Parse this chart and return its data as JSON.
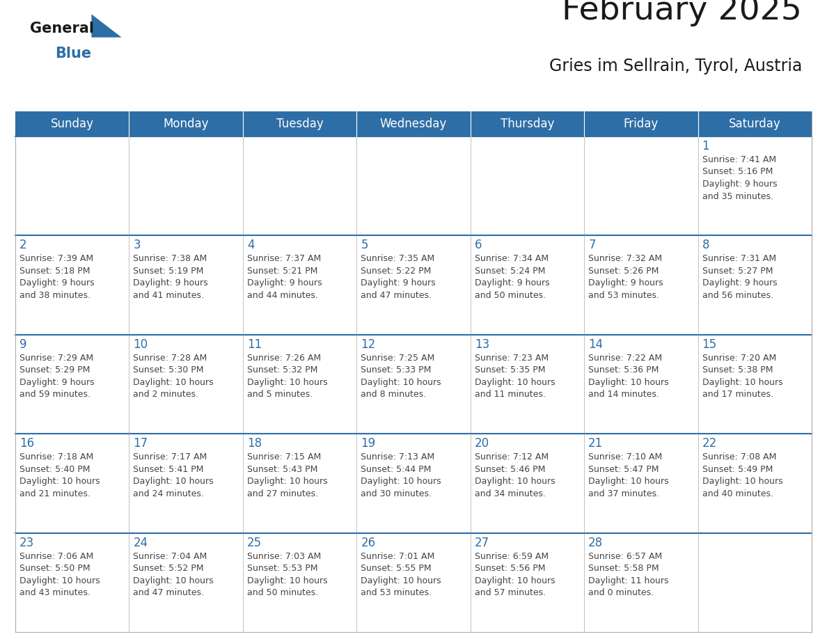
{
  "title": "February 2025",
  "subtitle": "Gries im Sellrain, Tyrol, Austria",
  "header_bg": "#2E6EA6",
  "header_text": "#FFFFFF",
  "row_bg": "#FFFFFF",
  "cell_border_color": "#AAAAAA",
  "week_divider_color": "#2E6EA6",
  "cell_text_color": "#444444",
  "day_number_color": "#2E6EA6",
  "header_days": [
    "Sunday",
    "Monday",
    "Tuesday",
    "Wednesday",
    "Thursday",
    "Friday",
    "Saturday"
  ],
  "weeks": [
    [
      {
        "day": null,
        "info": null
      },
      {
        "day": null,
        "info": null
      },
      {
        "day": null,
        "info": null
      },
      {
        "day": null,
        "info": null
      },
      {
        "day": null,
        "info": null
      },
      {
        "day": null,
        "info": null
      },
      {
        "day": 1,
        "info": "Sunrise: 7:41 AM\nSunset: 5:16 PM\nDaylight: 9 hours\nand 35 minutes."
      }
    ],
    [
      {
        "day": 2,
        "info": "Sunrise: 7:39 AM\nSunset: 5:18 PM\nDaylight: 9 hours\nand 38 minutes."
      },
      {
        "day": 3,
        "info": "Sunrise: 7:38 AM\nSunset: 5:19 PM\nDaylight: 9 hours\nand 41 minutes."
      },
      {
        "day": 4,
        "info": "Sunrise: 7:37 AM\nSunset: 5:21 PM\nDaylight: 9 hours\nand 44 minutes."
      },
      {
        "day": 5,
        "info": "Sunrise: 7:35 AM\nSunset: 5:22 PM\nDaylight: 9 hours\nand 47 minutes."
      },
      {
        "day": 6,
        "info": "Sunrise: 7:34 AM\nSunset: 5:24 PM\nDaylight: 9 hours\nand 50 minutes."
      },
      {
        "day": 7,
        "info": "Sunrise: 7:32 AM\nSunset: 5:26 PM\nDaylight: 9 hours\nand 53 minutes."
      },
      {
        "day": 8,
        "info": "Sunrise: 7:31 AM\nSunset: 5:27 PM\nDaylight: 9 hours\nand 56 minutes."
      }
    ],
    [
      {
        "day": 9,
        "info": "Sunrise: 7:29 AM\nSunset: 5:29 PM\nDaylight: 9 hours\nand 59 minutes."
      },
      {
        "day": 10,
        "info": "Sunrise: 7:28 AM\nSunset: 5:30 PM\nDaylight: 10 hours\nand 2 minutes."
      },
      {
        "day": 11,
        "info": "Sunrise: 7:26 AM\nSunset: 5:32 PM\nDaylight: 10 hours\nand 5 minutes."
      },
      {
        "day": 12,
        "info": "Sunrise: 7:25 AM\nSunset: 5:33 PM\nDaylight: 10 hours\nand 8 minutes."
      },
      {
        "day": 13,
        "info": "Sunrise: 7:23 AM\nSunset: 5:35 PM\nDaylight: 10 hours\nand 11 minutes."
      },
      {
        "day": 14,
        "info": "Sunrise: 7:22 AM\nSunset: 5:36 PM\nDaylight: 10 hours\nand 14 minutes."
      },
      {
        "day": 15,
        "info": "Sunrise: 7:20 AM\nSunset: 5:38 PM\nDaylight: 10 hours\nand 17 minutes."
      }
    ],
    [
      {
        "day": 16,
        "info": "Sunrise: 7:18 AM\nSunset: 5:40 PM\nDaylight: 10 hours\nand 21 minutes."
      },
      {
        "day": 17,
        "info": "Sunrise: 7:17 AM\nSunset: 5:41 PM\nDaylight: 10 hours\nand 24 minutes."
      },
      {
        "day": 18,
        "info": "Sunrise: 7:15 AM\nSunset: 5:43 PM\nDaylight: 10 hours\nand 27 minutes."
      },
      {
        "day": 19,
        "info": "Sunrise: 7:13 AM\nSunset: 5:44 PM\nDaylight: 10 hours\nand 30 minutes."
      },
      {
        "day": 20,
        "info": "Sunrise: 7:12 AM\nSunset: 5:46 PM\nDaylight: 10 hours\nand 34 minutes."
      },
      {
        "day": 21,
        "info": "Sunrise: 7:10 AM\nSunset: 5:47 PM\nDaylight: 10 hours\nand 37 minutes."
      },
      {
        "day": 22,
        "info": "Sunrise: 7:08 AM\nSunset: 5:49 PM\nDaylight: 10 hours\nand 40 minutes."
      }
    ],
    [
      {
        "day": 23,
        "info": "Sunrise: 7:06 AM\nSunset: 5:50 PM\nDaylight: 10 hours\nand 43 minutes."
      },
      {
        "day": 24,
        "info": "Sunrise: 7:04 AM\nSunset: 5:52 PM\nDaylight: 10 hours\nand 47 minutes."
      },
      {
        "day": 25,
        "info": "Sunrise: 7:03 AM\nSunset: 5:53 PM\nDaylight: 10 hours\nand 50 minutes."
      },
      {
        "day": 26,
        "info": "Sunrise: 7:01 AM\nSunset: 5:55 PM\nDaylight: 10 hours\nand 53 minutes."
      },
      {
        "day": 27,
        "info": "Sunrise: 6:59 AM\nSunset: 5:56 PM\nDaylight: 10 hours\nand 57 minutes."
      },
      {
        "day": 28,
        "info": "Sunrise: 6:57 AM\nSunset: 5:58 PM\nDaylight: 11 hours\nand 0 minutes."
      },
      {
        "day": null,
        "info": null
      }
    ]
  ],
  "title_fontsize": 34,
  "subtitle_fontsize": 17,
  "header_fontsize": 12,
  "day_number_fontsize": 12,
  "cell_info_fontsize": 9
}
